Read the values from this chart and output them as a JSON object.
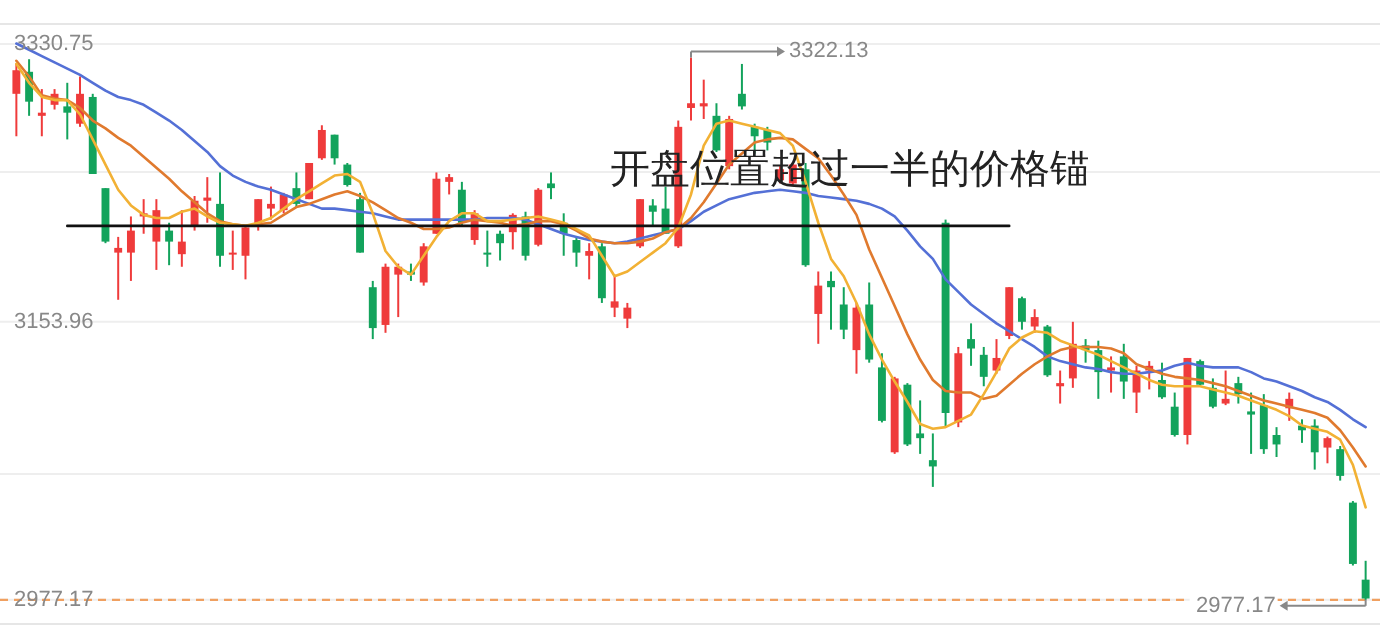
{
  "chart_data": {
    "type": "candlestick",
    "categories": [
      null,
      null,
      null,
      null,
      null,
      null,
      null,
      null,
      null,
      null,
      null,
      null,
      null,
      null,
      null,
      null,
      null,
      null,
      null,
      null,
      null,
      null,
      null,
      null,
      null,
      null,
      null,
      null,
      null,
      null,
      null,
      null,
      null,
      null,
      null,
      null,
      null,
      null,
      null,
      null,
      null,
      null,
      null,
      null,
      null,
      null,
      null,
      null,
      null,
      null,
      null,
      null,
      null,
      null,
      null,
      null,
      null,
      null,
      null,
      null,
      null,
      null,
      null,
      null,
      null,
      null,
      null,
      null,
      null,
      null,
      null,
      null,
      null,
      null,
      null,
      null,
      null,
      null,
      null,
      null,
      null,
      null,
      null,
      null,
      null,
      null,
      null,
      null,
      null,
      null,
      null,
      null,
      null,
      null,
      null,
      null,
      null,
      null,
      null,
      null,
      null,
      null,
      null,
      null,
      null,
      null,
      null
    ],
    "ohlc": [
      [
        3299,
        3318,
        3272,
        3314
      ],
      [
        3313,
        3321,
        3285,
        3294
      ],
      [
        3285,
        3302,
        3272,
        3287
      ],
      [
        3292,
        3302,
        3289,
        3299
      ],
      [
        3291,
        3306,
        3270,
        3287
      ],
      [
        3280,
        3310,
        3278,
        3299
      ],
      [
        3297,
        3299,
        3248,
        3248
      ],
      [
        3239,
        3239,
        3204,
        3205
      ],
      [
        3198,
        3208,
        3168,
        3201
      ],
      [
        3198,
        3221,
        3180,
        3212
      ],
      [
        3221,
        3232,
        3210,
        3223
      ],
      [
        3205,
        3232,
        3187,
        3225
      ],
      [
        3212,
        3217,
        3190,
        3205
      ],
      [
        3197,
        3225,
        3189,
        3205
      ],
      [
        3215,
        3234,
        3212,
        3231
      ],
      [
        3231,
        3246,
        3217,
        3233
      ],
      [
        3229,
        3249,
        3189,
        3196
      ],
      [
        3197,
        3212,
        3187,
        3198
      ],
      [
        3196,
        3215,
        3181,
        3214
      ],
      [
        3215,
        3232,
        3212,
        3232
      ],
      [
        3226,
        3240,
        3219,
        3229
      ],
      [
        3225,
        3236,
        3223,
        3235
      ],
      [
        3239,
        3249,
        3227,
        3229
      ],
      [
        3232,
        3255,
        3232,
        3255
      ],
      [
        3258,
        3279,
        3257,
        3276
      ],
      [
        3273,
        3273,
        3254,
        3258
      ],
      [
        3254,
        3255,
        3240,
        3241
      ],
      [
        3232,
        3236,
        3198,
        3198
      ],
      [
        3176,
        3180,
        3143,
        3150
      ],
      [
        3152,
        3191,
        3147,
        3189
      ],
      [
        3184,
        3191,
        3157,
        3189
      ],
      [
        3186,
        3191,
        3180,
        3184
      ],
      [
        3179,
        3204,
        3177,
        3202
      ],
      [
        3210,
        3249,
        3210,
        3245
      ],
      [
        3243,
        3248,
        3235,
        3246
      ],
      [
        3238,
        3243,
        3215,
        3217
      ],
      [
        3206,
        3225,
        3203,
        3223
      ],
      [
        3198,
        3212,
        3189,
        3197
      ],
      [
        3210,
        3212,
        3193,
        3204
      ],
      [
        3211,
        3223,
        3200,
        3222
      ],
      [
        3221,
        3224,
        3193,
        3196
      ],
      [
        3203,
        3239,
        3202,
        3238
      ],
      [
        3242,
        3249,
        3232,
        3239
      ],
      [
        3217,
        3223,
        3196,
        3210
      ],
      [
        3206,
        3208,
        3189,
        3198
      ],
      [
        3196,
        3204,
        3181,
        3199
      ],
      [
        3202,
        3204,
        3166,
        3169
      ],
      [
        3163,
        3184,
        3157,
        3167
      ],
      [
        3156,
        3166,
        3150,
        3163
      ],
      [
        3202,
        3232,
        3201,
        3232
      ],
      [
        3228,
        3232,
        3215,
        3224
      ],
      [
        3226,
        3240,
        3210,
        3210
      ],
      [
        3202,
        3282,
        3201,
        3278
      ],
      [
        3290,
        3322.13,
        3282,
        3293
      ],
      [
        3291,
        3308,
        3283,
        3293
      ],
      [
        3285,
        3293,
        3262,
        3263
      ],
      [
        3253,
        3285,
        3251,
        3283
      ],
      [
        3299,
        3318,
        3289,
        3291
      ],
      [
        3278,
        3280,
        3261,
        3272
      ],
      [
        3276,
        3278,
        3263,
        3268
      ],
      [
        3244,
        3253,
        3242,
        3251
      ],
      [
        3242,
        3255,
        3241,
        3254
      ],
      [
        3251,
        3255,
        3189,
        3190
      ],
      [
        3159,
        3186,
        3140,
        3177
      ],
      [
        3180,
        3186,
        3149,
        3176
      ],
      [
        3165,
        3176,
        3143,
        3149
      ],
      [
        3136,
        3166,
        3121,
        3163
      ],
      [
        3165,
        3179,
        3128,
        3130
      ],
      [
        3125,
        3134,
        3090,
        3091
      ],
      [
        3071,
        3119,
        3070,
        3118
      ],
      [
        3114,
        3115,
        3075,
        3076
      ],
      [
        3083,
        3104,
        3070,
        3080
      ],
      [
        3066,
        3083,
        3049,
        3062
      ],
      [
        3217,
        3219,
        3087,
        3096
      ],
      [
        3090,
        3138,
        3087,
        3134
      ],
      [
        3143,
        3153,
        3126,
        3137
      ],
      [
        3133,
        3138,
        3113,
        3119
      ],
      [
        3123,
        3143,
        3121,
        3131
      ],
      [
        3145,
        3176,
        3143,
        3176
      ],
      [
        3169,
        3170,
        3149,
        3154
      ],
      [
        3151,
        3162,
        3147,
        3157
      ],
      [
        3151,
        3152,
        3119,
        3120
      ],
      [
        3113,
        3123,
        3102,
        3115
      ],
      [
        3118,
        3154,
        3112,
        3140
      ],
      [
        3139,
        3143,
        3128,
        3136
      ],
      [
        3136,
        3142,
        3105,
        3122
      ],
      [
        3123,
        3132,
        3109,
        3125
      ],
      [
        3132,
        3140,
        3105,
        3116
      ],
      [
        3109,
        3126,
        3096,
        3123
      ],
      [
        3123,
        3129,
        3111,
        3126
      ],
      [
        3117,
        3128,
        3105,
        3106
      ],
      [
        3100,
        3109,
        3081,
        3082
      ],
      [
        3082,
        3131,
        3076,
        3131
      ],
      [
        3129,
        3130,
        3113,
        3114
      ],
      [
        3112,
        3118,
        3099,
        3100
      ],
      [
        3102,
        3123,
        3101,
        3105
      ],
      [
        3115,
        3119,
        3102,
        3108
      ],
      [
        3097,
        3109,
        3070,
        3095
      ],
      [
        3101,
        3108,
        3070,
        3073
      ],
      [
        3082,
        3087,
        3068,
        3076
      ],
      [
        3099,
        3109,
        3091,
        3105
      ],
      [
        3088,
        3092,
        3077,
        3085
      ],
      [
        3088,
        3092,
        3060,
        3071
      ],
      [
        3074,
        3081,
        3064,
        3080
      ],
      [
        3073,
        3075,
        3053,
        3056
      ],
      [
        3039,
        3040,
        2999,
        3000
      ],
      [
        2990,
        3002,
        2977.17,
        2978
      ]
    ],
    "colors": [
      "#ef3b3b",
      "#13a35c",
      "#ef3b3b",
      "#ef3b3b",
      "#13a35c",
      "#ef3b3b",
      "#13a35c",
      "#13a35c",
      "#ef3b3b",
      "#ef3b3b",
      "#ef3b3b",
      "#ef3b3b",
      "#13a35c",
      "#ef3b3b",
      "#ef3b3b",
      "#ef3b3b",
      "#13a35c",
      "#ef3b3b",
      "#ef3b3b",
      "#ef3b3b",
      "#ef3b3b",
      "#ef3b3b",
      "#13a35c",
      "#ef3b3b",
      "#ef3b3b",
      "#13a35c",
      "#13a35c",
      "#13a35c",
      "#13a35c",
      "#ef3b3b",
      "#ef3b3b",
      "#13a35c",
      "#ef3b3b",
      "#ef3b3b",
      "#ef3b3b",
      "#13a35c",
      "#ef3b3b",
      "#13a35c",
      "#13a35c",
      "#ef3b3b",
      "#13a35c",
      "#ef3b3b",
      "#13a35c",
      "#13a35c",
      "#13a35c",
      "#ef3b3b",
      "#13a35c",
      "#ef3b3b",
      "#ef3b3b",
      "#ef3b3b",
      "#13a35c",
      "#13a35c",
      "#ef3b3b",
      "#ef3b3b",
      "#ef3b3b",
      "#13a35c",
      "#ef3b3b",
      "#13a35c",
      "#13a35c",
      "#13a35c",
      "#ef3b3b",
      "#ef3b3b",
      "#13a35c",
      "#ef3b3b",
      "#13a35c",
      "#13a35c",
      "#ef3b3b",
      "#13a35c",
      "#13a35c",
      "#ef3b3b",
      "#13a35c",
      "#13a35c",
      "#13a35c",
      "#13a35c",
      "#ef3b3b",
      "#13a35c",
      "#13a35c",
      "#ef3b3b",
      "#ef3b3b",
      "#13a35c",
      "#ef3b3b",
      "#13a35c",
      "#ef3b3b",
      "#ef3b3b",
      "#13a35c",
      "#13a35c",
      "#ef3b3b",
      "#13a35c",
      "#ef3b3b",
      "#ef3b3b",
      "#13a35c",
      "#13a35c",
      "#ef3b3b",
      "#13a35c",
      "#13a35c",
      "#ef3b3b",
      "#13a35c",
      "#13a35c",
      "#13a35c",
      "#13a35c",
      "#ef3b3b",
      "#13a35c",
      "#13a35c",
      "#ef3b3b",
      "#13a35c",
      "#13a35c",
      "#13a35c"
    ],
    "series": [
      {
        "type": "line",
        "color": "#5470d6",
        "values": [
          3331,
          3327,
          3323,
          3319,
          3315,
          3311,
          3306,
          3301,
          3297,
          3295,
          3292,
          3287,
          3282,
          3276,
          3269,
          3262,
          3253,
          3247,
          3243,
          3240,
          3238,
          3235,
          3232,
          3229,
          3226,
          3226,
          3225,
          3224,
          3223,
          3221,
          3219,
          3219,
          3219,
          3219,
          3219,
          3219,
          3219,
          3220,
          3220,
          3220,
          3219,
          3216,
          3213,
          3210,
          3208,
          3206,
          3205,
          3204,
          3205,
          3207,
          3209,
          3211,
          3213,
          3218,
          3224,
          3228,
          3232,
          3234,
          3236,
          3237,
          3238,
          3237,
          3236,
          3234,
          3233,
          3232,
          3231,
          3229,
          3226,
          3221,
          3212,
          3202,
          3194,
          3181,
          3173,
          3165,
          3159,
          3153,
          3148,
          3143,
          3138,
          3132,
          3129,
          3127,
          3125,
          3124,
          3122,
          3121,
          3121,
          3122,
          3123,
          3126,
          3128,
          3126,
          3125,
          3125,
          3125,
          3122,
          3118,
          3116,
          3113,
          3110,
          3106,
          3103,
          3098,
          3092,
          3087
        ]
      },
      {
        "type": "line",
        "color": "#e07a2e",
        "values": [
          3320,
          3310,
          3298,
          3296,
          3295,
          3290,
          3282,
          3277,
          3271,
          3266,
          3259,
          3252,
          3245,
          3237,
          3230,
          3223,
          3218,
          3216,
          3215,
          3216,
          3217,
          3222,
          3227,
          3229,
          3232,
          3235,
          3237,
          3234,
          3230,
          3225,
          3220,
          3217,
          3213,
          3213,
          3214,
          3217,
          3219,
          3218,
          3217,
          3215,
          3216,
          3218,
          3218,
          3216,
          3212,
          3207,
          3205,
          3204,
          3204,
          3205,
          3207,
          3211,
          3213,
          3220,
          3230,
          3242,
          3254,
          3261,
          3268,
          3270,
          3271,
          3270,
          3264,
          3258,
          3247,
          3235,
          3222,
          3200,
          3182,
          3164,
          3146,
          3130,
          3117,
          3110,
          3109,
          3109,
          3105,
          3107,
          3114,
          3121,
          3127,
          3132,
          3136,
          3138,
          3138,
          3138,
          3137,
          3134,
          3127,
          3124,
          3121,
          3119,
          3118,
          3117,
          3115,
          3113,
          3110,
          3107,
          3104,
          3102,
          3100,
          3098,
          3096,
          3093,
          3085,
          3074,
          3062
        ]
      },
      {
        "type": "line",
        "color": "#f2b134",
        "values": [
          3318,
          3306,
          3297,
          3295,
          3295,
          3286,
          3270,
          3254,
          3238,
          3228,
          3222,
          3220,
          3220,
          3224,
          3226,
          3221,
          3217,
          3216,
          3215,
          3217,
          3220,
          3226,
          3232,
          3237,
          3242,
          3247,
          3248,
          3243,
          3223,
          3199,
          3189,
          3184,
          3196,
          3208,
          3218,
          3223,
          3223,
          3218,
          3218,
          3219,
          3220,
          3221,
          3219,
          3217,
          3213,
          3209,
          3196,
          3183,
          3186,
          3192,
          3198,
          3204,
          3214,
          3235,
          3266,
          3280,
          3282,
          3280,
          3278,
          3276,
          3274,
          3266,
          3243,
          3217,
          3194,
          3183,
          3166,
          3146,
          3130,
          3116,
          3103,
          3089,
          3086,
          3087,
          3091,
          3095,
          3108,
          3122,
          3137,
          3144,
          3148,
          3147,
          3142,
          3139,
          3136,
          3133,
          3129,
          3125,
          3121,
          3117,
          3114,
          3113,
          3113,
          3113,
          3111,
          3109,
          3107,
          3104,
          3101,
          3098,
          3094,
          3088,
          3086,
          3084,
          3079,
          3063,
          3036
        ]
      },
      {
        "type": "line",
        "color": "#111111",
        "values": [
          null,
          null,
          null,
          null,
          3215,
          3215,
          3215,
          3215,
          3215,
          3215,
          3215,
          3215,
          3215,
          3215,
          3215,
          3215,
          3215,
          3215,
          3215,
          3215,
          3215,
          3215,
          3215,
          3215,
          3215,
          3215,
          3215,
          3215,
          3215,
          3215,
          3215,
          3215,
          3215,
          3215,
          3215,
          3215,
          3215,
          3215,
          3215,
          3215,
          3215,
          3215,
          3215,
          3215,
          3215,
          3215,
          3215,
          3215,
          3215,
          3215,
          3215,
          3215,
          3215,
          3215,
          3215,
          3215,
          3215,
          3215,
          3215,
          3215,
          3215,
          3215,
          3215,
          3215,
          3215,
          3215,
          3215,
          3215,
          3215,
          3215,
          3215,
          3215,
          3215,
          3215,
          3215,
          3215,
          3215,
          3215,
          3215,
          null,
          null,
          null,
          null,
          null,
          null,
          null,
          null,
          null,
          null,
          null,
          null,
          null,
          null,
          null,
          null,
          null,
          null,
          null,
          null,
          null,
          null,
          null,
          null,
          null,
          null,
          null,
          null
        ]
      }
    ],
    "ylim": [
      2961.8,
      3343.4
    ],
    "yticks": [
      3330.75,
      {
        "value": 3249.3,
        "label": null
      },
      3153.96,
      {
        "value": 3057.2,
        "label": null
      },
      2977.17
    ],
    "grid": "y",
    "ref_lines": [
      {
        "axis": "y",
        "value": 2977.17,
        "color": "#f0a060",
        "line_style": "dashed"
      }
    ],
    "annotations": [
      "开盘位置超过一半的价格锚",
      "3322.13",
      "2977.17"
    ]
  }
}
